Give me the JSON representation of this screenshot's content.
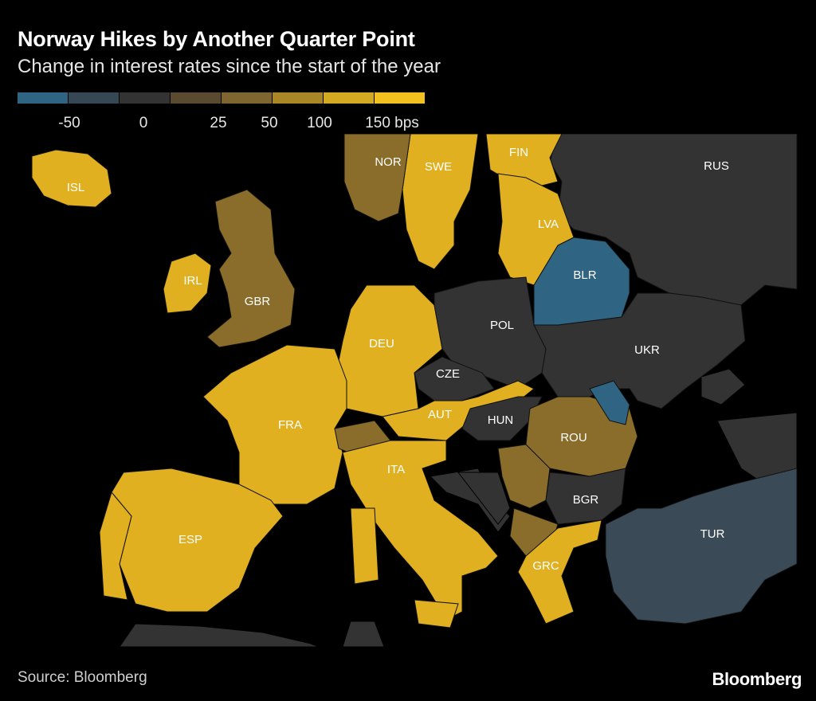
{
  "header": {
    "title": "Norway Hikes by Another Quarter Point",
    "subtitle": "Change in interest rates since the start of the year"
  },
  "legend": {
    "swatches": [
      "#2f6482",
      "#374855",
      "#333333",
      "#5a4b30",
      "#7f6530",
      "#a98727",
      "#d3aa22",
      "#f2c120"
    ],
    "labels": [
      "-50",
      "0",
      "25",
      "50",
      "100",
      "150 bps"
    ]
  },
  "colors": {
    "background": "#000000",
    "no_data_land": "#333333",
    "neg_50": "#2f6482",
    "neg_25": "#3b4a57",
    "pos_100": "#8a6d2a",
    "pos_150": "#e0b020"
  },
  "map": {
    "countries": [
      {
        "code": "ISL",
        "label": "ISL",
        "category": "150 bps"
      },
      {
        "code": "NOR",
        "label": "NOR",
        "category": "100"
      },
      {
        "code": "SWE",
        "label": "SWE",
        "category": "150 bps"
      },
      {
        "code": "FIN",
        "label": "FIN",
        "category": "150 bps"
      },
      {
        "code": "RUS",
        "label": "RUS",
        "category": "0"
      },
      {
        "code": "LVA",
        "label": "LVA",
        "category": "150 bps"
      },
      {
        "code": "BLR",
        "label": "BLR",
        "category": "-50"
      },
      {
        "code": "IRL",
        "label": "IRL",
        "category": "150 bps"
      },
      {
        "code": "GBR",
        "label": "GBR",
        "category": "100"
      },
      {
        "code": "DEU",
        "label": "DEU",
        "category": "150 bps"
      },
      {
        "code": "POL",
        "label": "POL",
        "category": "0"
      },
      {
        "code": "UKR",
        "label": "UKR",
        "category": "0"
      },
      {
        "code": "CZE",
        "label": "CZE",
        "category": "0"
      },
      {
        "code": "FRA",
        "label": "FRA",
        "category": "150 bps"
      },
      {
        "code": "AUT",
        "label": "AUT",
        "category": "150 bps"
      },
      {
        "code": "HUN",
        "label": "HUN",
        "category": "0"
      },
      {
        "code": "ROU",
        "label": "ROU",
        "category": "100"
      },
      {
        "code": "ITA",
        "label": "ITA",
        "category": "150 bps"
      },
      {
        "code": "BGR",
        "label": "BGR",
        "category": "0"
      },
      {
        "code": "ESP",
        "label": "ESP",
        "category": "150 bps"
      },
      {
        "code": "TUR",
        "label": "TUR",
        "category": "-25"
      },
      {
        "code": "GRC",
        "label": "GRC",
        "category": "150 bps"
      }
    ]
  },
  "footer": {
    "source": "Source: Bloomberg",
    "brand": "Bloomberg"
  }
}
